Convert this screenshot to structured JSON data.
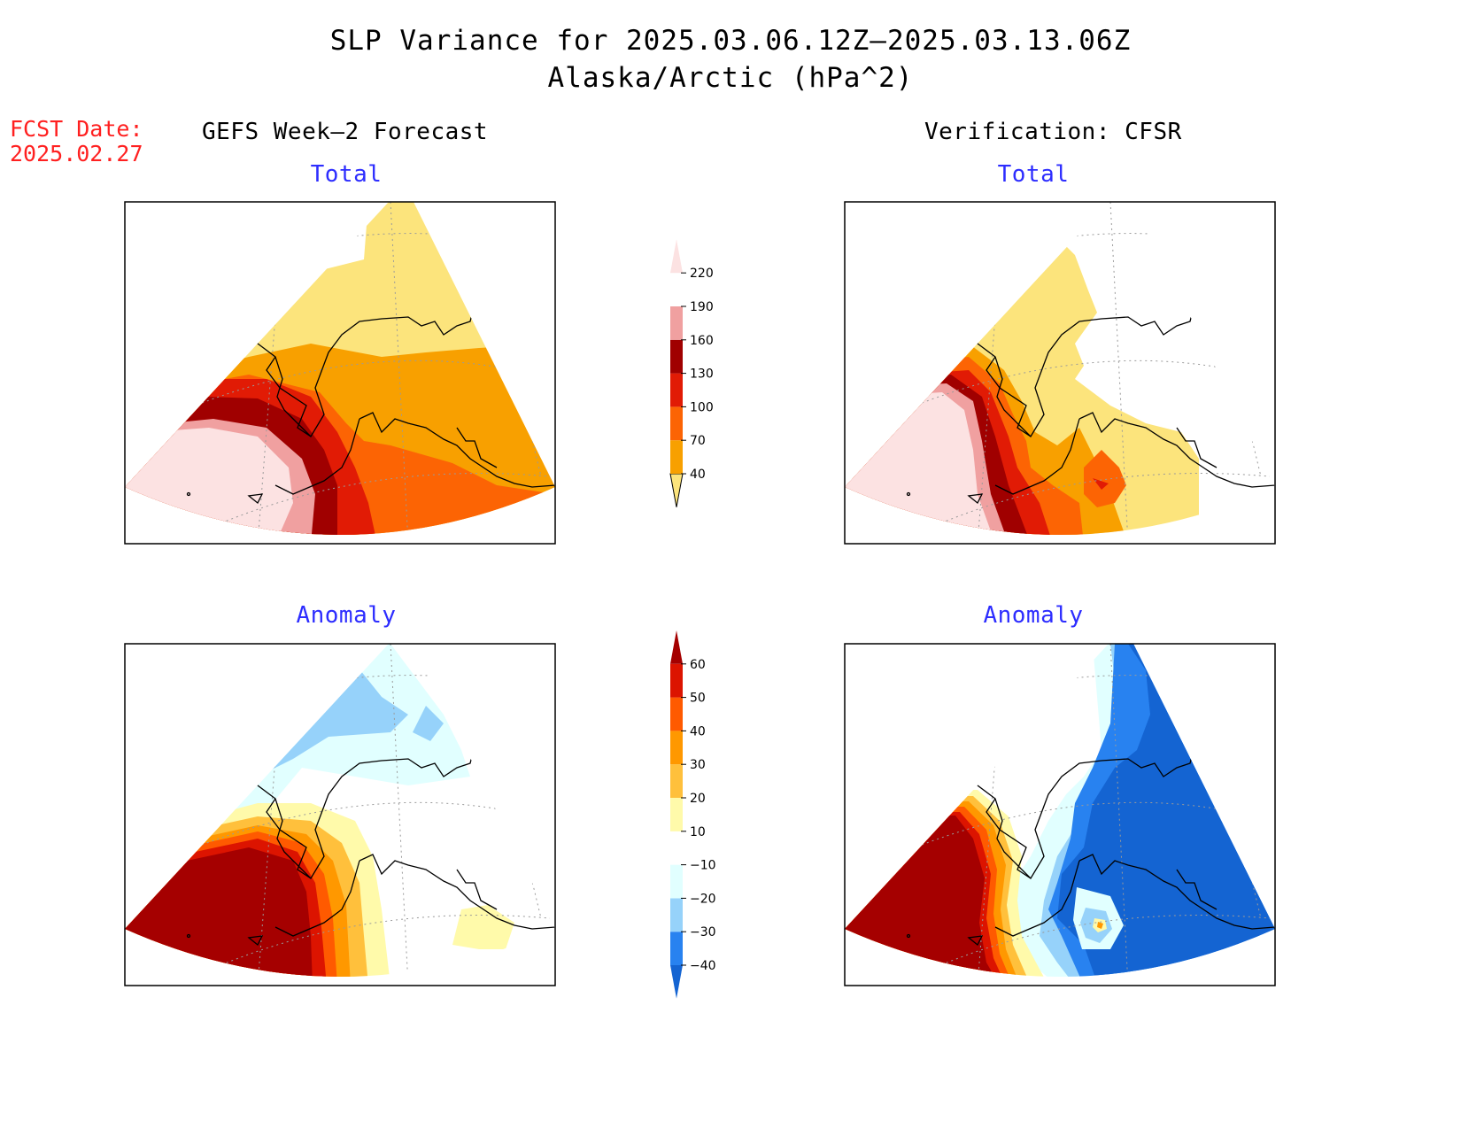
{
  "title": {
    "line1": "SLP Variance for 2025.03.06.12Z–2025.03.13.06Z",
    "line2": "Alaska/Arctic (hPa^2)"
  },
  "forecast_date": {
    "label": "FCST Date:",
    "value": "2025.02.27"
  },
  "columns": {
    "left_heading": "GEFS Week–2 Forecast",
    "right_heading": "Verification: CFSR"
  },
  "panels": [
    {
      "id": "forecast-total",
      "label": "Total"
    },
    {
      "id": "verification-total",
      "label": "Total"
    },
    {
      "id": "forecast-anomaly",
      "label": "Anomaly"
    },
    {
      "id": "verification-anomaly",
      "label": "Anomaly"
    }
  ],
  "colorbars": {
    "total": {
      "levels": [
        "40",
        "70",
        "100",
        "130",
        "160",
        "190",
        "220"
      ],
      "colors": [
        "#fce47c",
        "#f8a000",
        "#fc6404",
        "#e11b05",
        "#a00000",
        "#f0a0a0",
        "#fce2e2"
      ]
    },
    "anomaly": {
      "levels": [
        "−40",
        "−30",
        "−20",
        "−10",
        "10",
        "20",
        "30",
        "40",
        "50",
        "60"
      ],
      "colors": [
        "#1464d2",
        "#2882f0",
        "#96d2fa",
        "#e1ffff",
        "#ffffff",
        "#fffaaa",
        "#ffc03c",
        "#ff9800",
        "#ff5a00",
        "#dc1400",
        "#a50000"
      ]
    }
  },
  "colors": {
    "title_text": "#000000",
    "forecast_date_text": "#ff2020",
    "panel_label_text": "#2d2dff"
  }
}
